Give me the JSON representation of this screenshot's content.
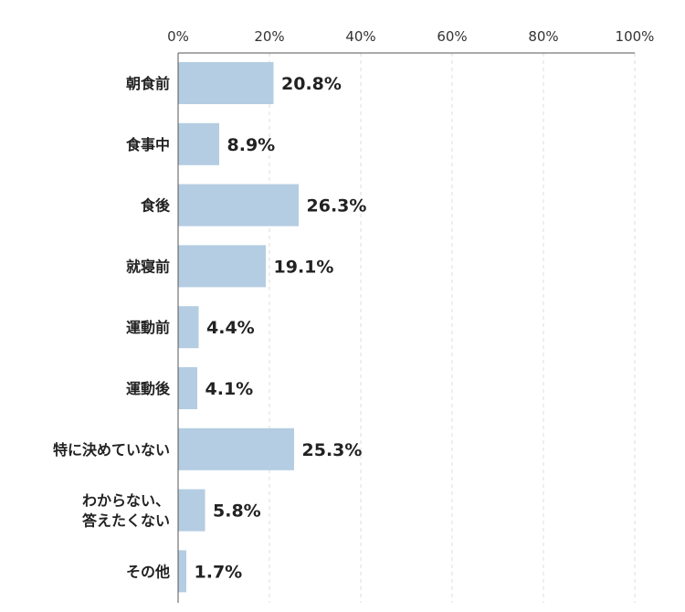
{
  "chart_data": {
    "type": "bar",
    "orientation": "horizontal",
    "categories": [
      [
        "朝食前"
      ],
      [
        "食事中"
      ],
      [
        "食後"
      ],
      [
        "就寝前"
      ],
      [
        "運動前"
      ],
      [
        "運動後"
      ],
      [
        "特に決めていない"
      ],
      [
        "わからない、",
        "答えたくない"
      ],
      [
        "その他"
      ]
    ],
    "values": [
      20.8,
      8.9,
      26.3,
      19.1,
      4.4,
      4.1,
      25.3,
      5.8,
      1.7
    ],
    "value_labels": [
      "20.8%",
      "8.9%",
      "26.3%",
      "19.1%",
      "4.4%",
      "4.1%",
      "25.3%",
      "5.8%",
      "1.7%"
    ],
    "xlim": [
      0,
      100
    ],
    "xticks": [
      0,
      20,
      40,
      60,
      80,
      100
    ],
    "xtick_labels": [
      "0%",
      "20%",
      "40%",
      "60%",
      "80%",
      "100%"
    ],
    "x_axis_position": "top",
    "grid": "vertical dashed",
    "legend": "none",
    "title": "",
    "xlabel": "",
    "ylabel": "",
    "colors": {
      "bar": "#b4cde2",
      "axis": "#555555",
      "grid": "#dddddd"
    }
  }
}
